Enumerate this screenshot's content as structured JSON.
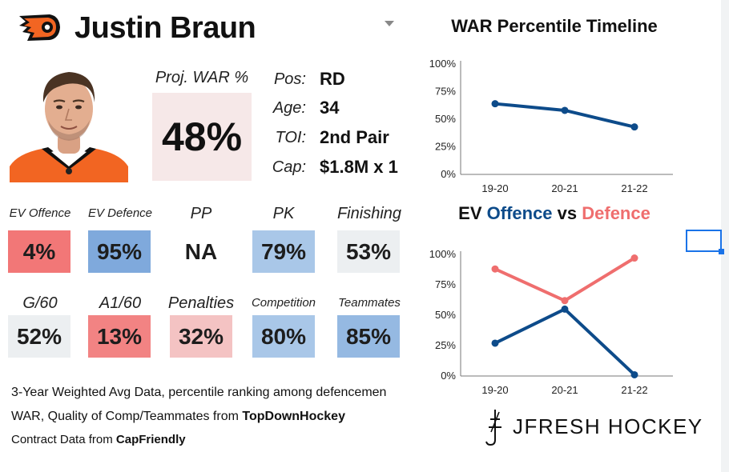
{
  "player": {
    "name": "Justin Braun"
  },
  "projected": {
    "label": "Proj. WAR %",
    "value": "48%"
  },
  "bio": [
    {
      "key": "Pos:",
      "value": "RD"
    },
    {
      "key": "Age:",
      "value": "34"
    },
    {
      "key": "TOI:",
      "value": "2nd Pair"
    },
    {
      "key": "Cap:",
      "value": "$1.8M x 1"
    }
  ],
  "stats_row1": [
    {
      "label": "EV Offence",
      "value": "4%",
      "color": "#f27777"
    },
    {
      "label": "EV Defence",
      "value": "95%",
      "color": "#7fa9dc"
    },
    {
      "label": "PP",
      "value": "NA",
      "color": "#ffffff"
    },
    {
      "label": "PK",
      "value": "79%",
      "color": "#a9c7e8"
    },
    {
      "label": "Finishing",
      "value": "53%",
      "color": "#eceff1"
    }
  ],
  "stats_row2": [
    {
      "label": "G/60",
      "value": "52%",
      "color": "#eceff1"
    },
    {
      "label": "A1/60",
      "value": "13%",
      "color": "#f28383"
    },
    {
      "label": "Penalties",
      "value": "32%",
      "color": "#f4c3c3"
    },
    {
      "label": "Competition",
      "value": "80%",
      "color": "#a9c7e8"
    },
    {
      "label": "Teammates",
      "value": "85%",
      "color": "#95b9e2"
    }
  ],
  "footnotes": {
    "line1": "3-Year Weighted Avg Data, percentile ranking among defencemen",
    "line2_prefix": "WAR, Quality of Comp/Teammates from ",
    "line2_source": "TopDownHockey",
    "line3_prefix": "Contract Data from ",
    "line3_source": "CapFriendly"
  },
  "brand": {
    "text": "JFRESH HOCKEY"
  },
  "colors": {
    "offence": "#0d4b8a",
    "defence": "#ef6e6e",
    "line": "#0d4b8a"
  },
  "chart_data": [
    {
      "type": "line",
      "title": "WAR Percentile Timeline",
      "categories": [
        "19-20",
        "20-21",
        "21-22"
      ],
      "series": [
        {
          "values": [
            64,
            58,
            43
          ]
        }
      ],
      "ylim": [
        0,
        100
      ],
      "yticks": [
        "0%",
        "25%",
        "50%",
        "75%",
        "100%"
      ],
      "grid": false
    },
    {
      "type": "line",
      "title_parts": {
        "a": "EV ",
        "b": "Offence",
        "c": " vs ",
        "d": "Defence"
      },
      "categories": [
        "19-20",
        "20-21",
        "21-22"
      ],
      "series": [
        {
          "name": "Offence",
          "values": [
            27,
            55,
            1
          ]
        },
        {
          "name": "Defence",
          "values": [
            88,
            62,
            97
          ]
        }
      ],
      "ylim": [
        0,
        100
      ],
      "yticks": [
        "0%",
        "25%",
        "50%",
        "75%",
        "100%"
      ],
      "grid": false
    }
  ]
}
